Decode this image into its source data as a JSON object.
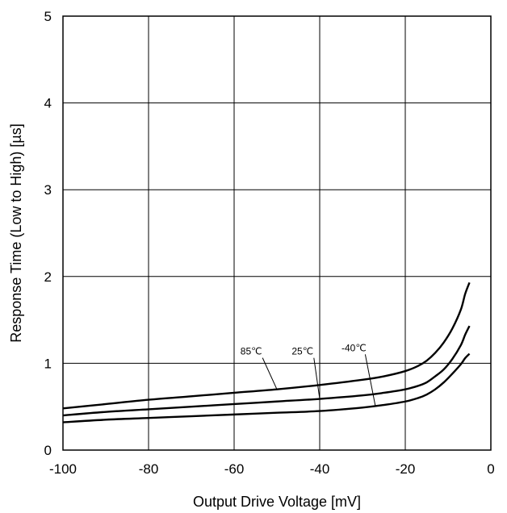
{
  "chart_data": {
    "type": "line",
    "title": "",
    "xlabel": "Output Drive Voltage [mV]",
    "ylabel": "Response Time (Low to High) [µs]",
    "xlim": [
      -100,
      0
    ],
    "ylim": [
      0,
      5
    ],
    "x_ticks": [
      "-100",
      "-80",
      "-60",
      "-40",
      "-20",
      "0"
    ],
    "y_ticks": [
      "0",
      "1",
      "2",
      "3",
      "4",
      "5"
    ],
    "grid": true,
    "legend": "none",
    "series": [
      {
        "name": "85℃",
        "x": [
          -100,
          -90,
          -80,
          -70,
          -60,
          -50,
          -40,
          -30,
          -25,
          -20,
          -17,
          -15,
          -13,
          -11,
          -9,
          -7,
          -6,
          -5
        ],
        "y": [
          0.48,
          0.53,
          0.58,
          0.62,
          0.66,
          0.7,
          0.75,
          0.81,
          0.85,
          0.91,
          0.97,
          1.03,
          1.12,
          1.24,
          1.4,
          1.62,
          1.8,
          1.93
        ]
      },
      {
        "name": "25℃",
        "x": [
          -100,
          -90,
          -80,
          -70,
          -60,
          -50,
          -40,
          -30,
          -25,
          -20,
          -17,
          -15,
          -13,
          -11,
          -9,
          -7,
          -6,
          -5
        ],
        "y": [
          0.4,
          0.44,
          0.47,
          0.5,
          0.53,
          0.56,
          0.59,
          0.63,
          0.66,
          0.7,
          0.74,
          0.78,
          0.85,
          0.93,
          1.05,
          1.21,
          1.33,
          1.43
        ]
      },
      {
        "name": "-40℃",
        "x": [
          -100,
          -90,
          -80,
          -70,
          -60,
          -50,
          -40,
          -30,
          -25,
          -20,
          -17,
          -15,
          -13,
          -11,
          -9,
          -7,
          -6,
          -5
        ],
        "y": [
          0.32,
          0.35,
          0.37,
          0.39,
          0.41,
          0.43,
          0.45,
          0.49,
          0.52,
          0.56,
          0.6,
          0.64,
          0.7,
          0.78,
          0.88,
          0.99,
          1.06,
          1.11
        ]
      }
    ],
    "annotations": [
      {
        "text": "85℃",
        "series": 0,
        "label_at": [
          -56,
          1.1
        ],
        "point_at": [
          -50,
          0.7
        ]
      },
      {
        "text": "25℃",
        "series": 1,
        "label_at": [
          -44,
          1.1
        ],
        "point_at": [
          -40,
          0.59
        ]
      },
      {
        "text": "-40℃",
        "series": 2,
        "label_at": [
          -32,
          1.14
        ],
        "point_at": [
          -27,
          0.51
        ]
      }
    ]
  }
}
